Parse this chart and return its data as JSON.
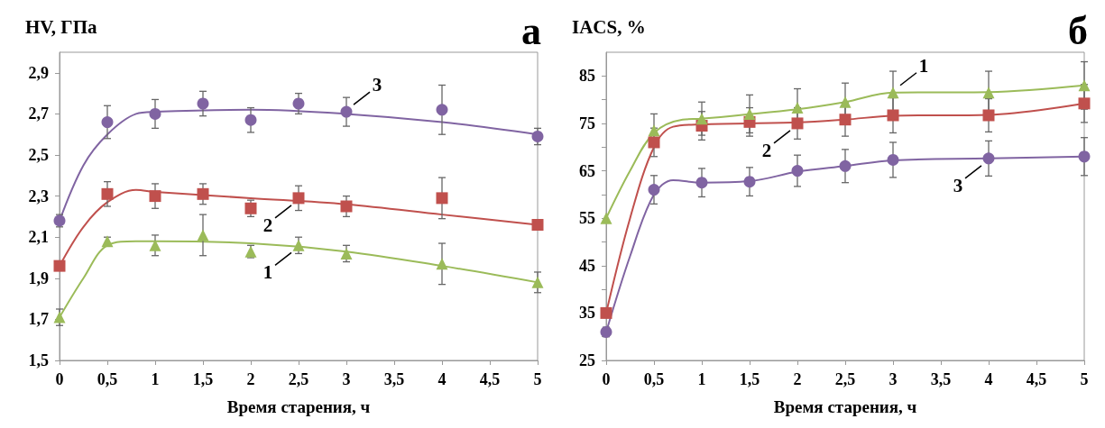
{
  "chart_data": [
    {
      "type": "scatter",
      "ylabel": "HV, ГПа",
      "xlabel": "Время старения, ч",
      "annotations": [
        "а",
        {
          "text": "3",
          "x": 3,
          "y": 2.71
        },
        {
          "text": "2",
          "x": 2.5,
          "y": 2.29
        },
        {
          "text": "1",
          "x": 2.5,
          "y": 2.06
        }
      ],
      "xlim": [
        0,
        5
      ],
      "xticks": [
        0,
        {
          "value": 0.5,
          "label": "0,5"
        },
        1,
        {
          "value": 1.5,
          "label": "1,5"
        },
        2,
        {
          "value": 2.5,
          "label": "2,5"
        },
        3,
        {
          "value": 3.5,
          "label": "3,5"
        },
        4,
        {
          "value": 4.5,
          "label": "4,5"
        },
        5
      ],
      "ylim": [
        1.5,
        3.0
      ],
      "yticks": [
        {
          "value": 1.5,
          "label": "1,5"
        },
        {
          "value": 1.7,
          "label": "1,7"
        },
        {
          "value": 1.9,
          "label": "1,9"
        },
        {
          "value": 2.1,
          "label": "2,1"
        },
        {
          "value": 2.3,
          "label": "2,3"
        },
        {
          "value": 2.5,
          "label": "2,5"
        },
        {
          "value": 2.7,
          "label": "2,7"
        },
        {
          "value": 2.9,
          "label": "2,9"
        }
      ],
      "grid": false,
      "series": [
        {
          "type": "line",
          "marker": "none",
          "color": "#8064a2",
          "x": [
            0,
            0.25,
            0.5,
            0.8,
            1,
            2,
            3,
            4,
            5
          ],
          "values": [
            2.18,
            2.45,
            2.6,
            2.7,
            2.71,
            2.72,
            2.7,
            2.66,
            2.6
          ]
        },
        {
          "type": "line",
          "marker": "none",
          "color": "#c0504d",
          "x": [
            0,
            0.25,
            0.5,
            0.8,
            1,
            2,
            3,
            4,
            5
          ],
          "values": [
            1.96,
            2.15,
            2.27,
            2.33,
            2.32,
            2.29,
            2.26,
            2.21,
            2.16
          ]
        },
        {
          "type": "line",
          "marker": "none",
          "color": "#9bbb59",
          "x": [
            0,
            0.25,
            0.5,
            0.8,
            1,
            2,
            3,
            4,
            5
          ],
          "values": [
            1.71,
            1.9,
            2.06,
            2.08,
            2.08,
            2.07,
            2.03,
            1.96,
            1.88
          ]
        },
        {
          "marker": "circle",
          "color": "#8064a2",
          "x": [
            0,
            0.5,
            1,
            1.5,
            2,
            2.5,
            3,
            4,
            5
          ],
          "values": [
            2.18,
            2.66,
            2.7,
            2.75,
            2.67,
            2.75,
            2.71,
            2.72,
            2.59
          ],
          "errors": [
            0.03,
            0.08,
            0.07,
            0.06,
            0.06,
            0.05,
            0.07,
            0.12,
            0.04
          ]
        },
        {
          "marker": "square",
          "color": "#c0504d",
          "x": [
            0,
            0.5,
            1,
            1.5,
            2,
            2.5,
            3,
            4,
            5
          ],
          "values": [
            1.96,
            2.31,
            2.3,
            2.31,
            2.24,
            2.29,
            2.25,
            2.29,
            2.16
          ],
          "errors": [
            null,
            0.06,
            0.06,
            0.05,
            0.04,
            0.06,
            0.05,
            0.1,
            null
          ]
        },
        {
          "marker": "triangle",
          "color": "#9bbb59",
          "x": [
            0,
            0.5,
            1,
            1.5,
            2,
            2.5,
            3,
            4,
            5
          ],
          "values": [
            1.71,
            2.08,
            2.06,
            2.11,
            2.03,
            2.06,
            2.02,
            1.97,
            1.88
          ],
          "errors": [
            0.04,
            0.02,
            0.05,
            0.1,
            0.03,
            0.04,
            0.04,
            0.1,
            0.05
          ]
        }
      ]
    },
    {
      "type": "scatter",
      "ylabel": "IACS, %",
      "xlabel": "Время старения, ч",
      "annotations": [
        "б",
        {
          "text": "1",
          "x": 3,
          "y": 81.5
        },
        {
          "text": "2",
          "x": 2,
          "y": 75
        },
        {
          "text": "3",
          "x": 4,
          "y": 67.6
        }
      ],
      "xlim": [
        0,
        5
      ],
      "xticks": [
        0,
        {
          "value": 0.5,
          "label": "0,5"
        },
        1,
        {
          "value": 1.5,
          "label": "1,5"
        },
        2,
        {
          "value": 2.5,
          "label": "2,5"
        },
        3,
        {
          "value": 3.5,
          "label": "3,5"
        },
        4,
        {
          "value": 4.5,
          "label": "4,5"
        },
        5
      ],
      "ylim": [
        25,
        90
      ],
      "yticks": [
        25,
        {
          "value": 30,
          "label": null
        },
        35,
        {
          "value": 40,
          "label": null
        },
        45,
        {
          "value": 50,
          "label": null
        },
        55,
        {
          "value": 60,
          "label": null
        },
        65,
        {
          "value": 70,
          "label": null
        },
        75,
        {
          "value": 80,
          "label": null
        },
        85
      ],
      "grid": false,
      "series": [
        {
          "type": "line",
          "marker": "none",
          "color": "#9bbb59",
          "x": [
            0,
            0.25,
            0.5,
            0.8,
            1,
            2,
            2.5,
            3,
            4,
            5
          ],
          "values": [
            55,
            65,
            73,
            75.8,
            76,
            78,
            79.5,
            81.5,
            81.6,
            83
          ]
        },
        {
          "type": "line",
          "marker": "none",
          "color": "#c0504d",
          "x": [
            0,
            0.25,
            0.5,
            0.7,
            1,
            2,
            2.5,
            3,
            4,
            5
          ],
          "values": [
            35,
            55,
            70,
            74.3,
            74.8,
            75.2,
            75.8,
            76.6,
            76.8,
            79.2
          ]
        },
        {
          "type": "line",
          "marker": "none",
          "color": "#8064a2",
          "x": [
            0,
            0.25,
            0.5,
            0.7,
            1,
            1.5,
            2,
            2.5,
            3,
            4,
            5
          ],
          "values": [
            31,
            47,
            60,
            63,
            62.5,
            62.8,
            64.8,
            66,
            67.2,
            67.6,
            68
          ]
        },
        {
          "marker": "triangle",
          "color": "#9bbb59",
          "x": [
            0,
            0.5,
            1,
            1.5,
            2,
            2.5,
            3,
            4,
            5
          ],
          "values": [
            55,
            73.5,
            76,
            77,
            78.3,
            79.5,
            81.5,
            81.5,
            83
          ],
          "errors": [
            null,
            3.5,
            3.5,
            4,
            4,
            4,
            4.5,
            4.5,
            5
          ]
        },
        {
          "marker": "square",
          "color": "#c0504d",
          "x": [
            0,
            0.5,
            1,
            1.5,
            2,
            2.5,
            3,
            4,
            5
          ],
          "values": [
            35,
            71,
            74.5,
            75.3,
            75,
            75.8,
            76.7,
            76.7,
            79.2
          ],
          "errors": [
            null,
            3,
            3,
            3,
            3.3,
            3.5,
            3.7,
            3.5,
            4
          ]
        },
        {
          "marker": "circle",
          "color": "#8064a2",
          "x": [
            0,
            0.5,
            1,
            1.5,
            2,
            2.5,
            3,
            4,
            5
          ],
          "values": [
            31,
            61,
            62.5,
            62.7,
            65,
            66,
            67.3,
            67.6,
            68
          ],
          "errors": [
            1,
            3,
            3,
            3,
            3.3,
            3.5,
            3.7,
            3.7,
            4
          ]
        }
      ]
    }
  ]
}
